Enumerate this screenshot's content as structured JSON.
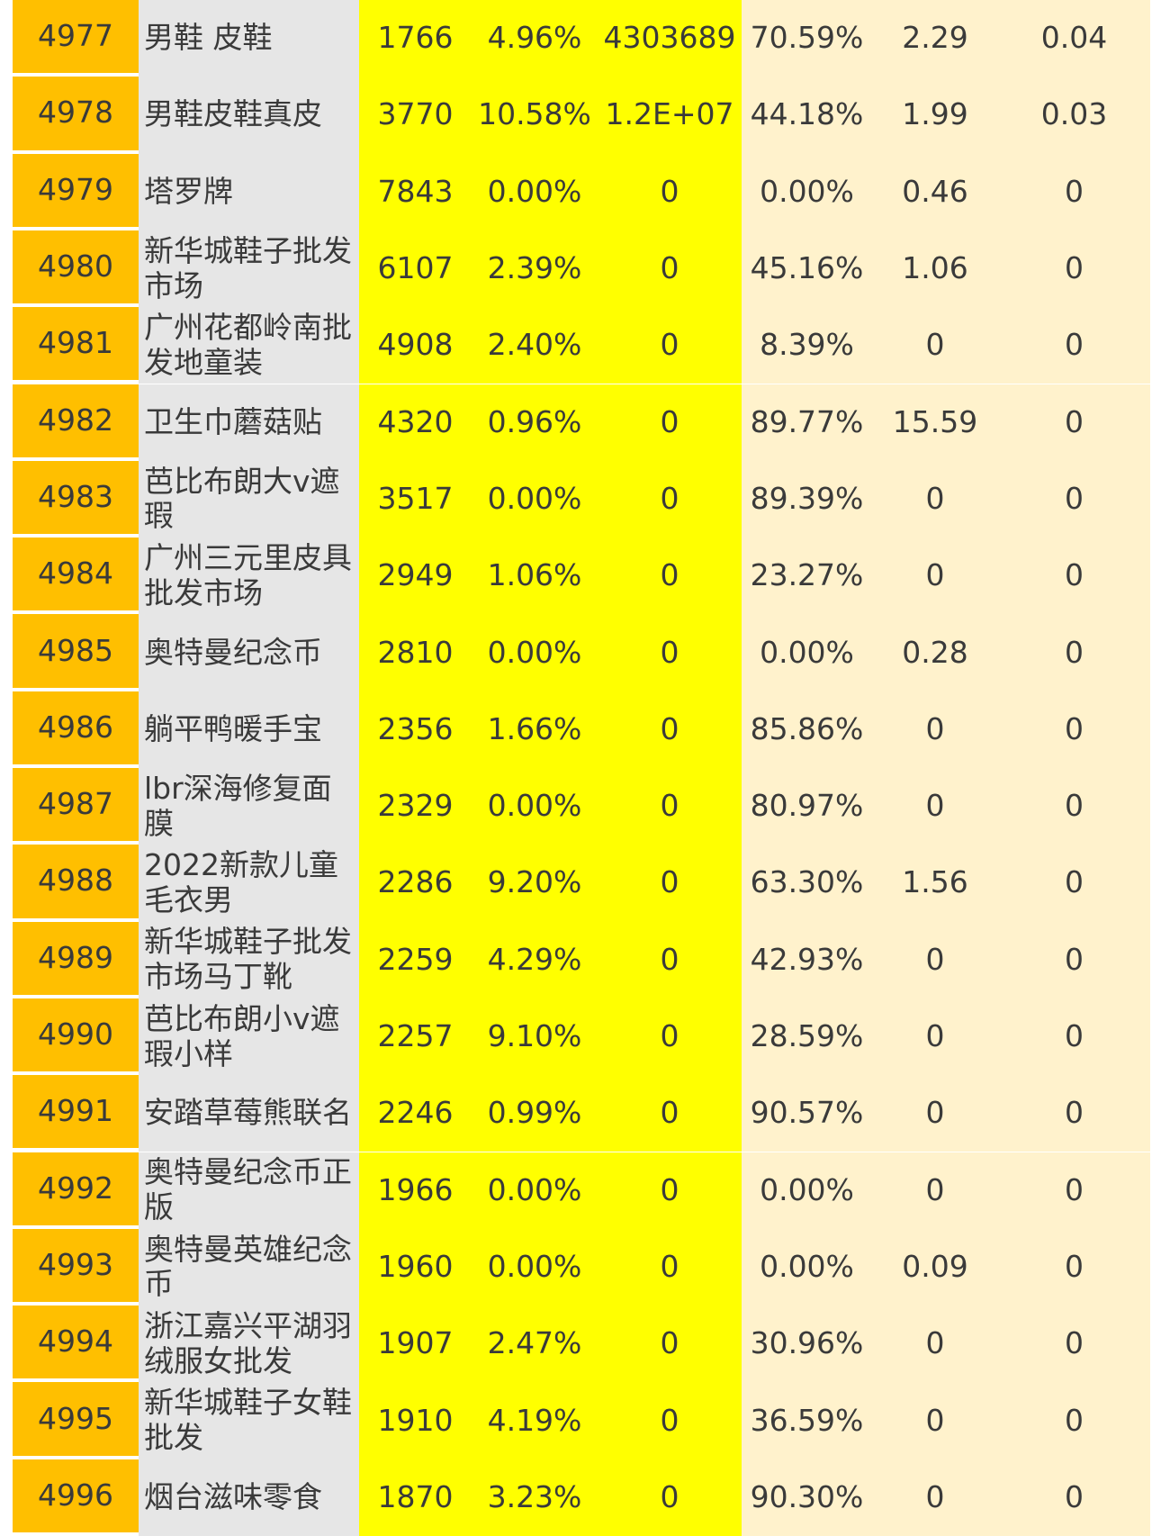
{
  "table": {
    "rows": [
      {
        "id": "4977",
        "name": "男鞋 皮鞋",
        "v1": "1766",
        "v2": "4.96%",
        "v3": "4303689",
        "v4": "70.59%",
        "v5": "2.29",
        "v6": "0.04"
      },
      {
        "id": "4978",
        "name": "男鞋皮鞋真皮",
        "v1": "3770",
        "v2": "10.58%",
        "v3": "1.2E+07",
        "v4": "44.18%",
        "v5": "1.99",
        "v6": "0.03"
      },
      {
        "id": "4979",
        "name": "塔罗牌",
        "v1": "7843",
        "v2": "0.00%",
        "v3": "0",
        "v4": "0.00%",
        "v5": "0.46",
        "v6": "0"
      },
      {
        "id": "4980",
        "name": "新华城鞋子批发市场",
        "v1": "6107",
        "v2": "2.39%",
        "v3": "0",
        "v4": "45.16%",
        "v5": "1.06",
        "v6": "0"
      },
      {
        "id": "4981",
        "name": "广州花都岭南批发地童装",
        "v1": "4908",
        "v2": "2.40%",
        "v3": "0",
        "v4": "8.39%",
        "v5": "0",
        "v6": "0"
      },
      {
        "id": "4982",
        "name": "卫生巾蘑菇贴",
        "v1": "4320",
        "v2": "0.96%",
        "v3": "0",
        "v4": "89.77%",
        "v5": "15.59",
        "v6": "0"
      },
      {
        "id": "4983",
        "name": "芭比布朗大v遮瑕",
        "v1": "3517",
        "v2": "0.00%",
        "v3": "0",
        "v4": "89.39%",
        "v5": "0",
        "v6": "0"
      },
      {
        "id": "4984",
        "name": "广州三元里皮具批发市场",
        "v1": "2949",
        "v2": "1.06%",
        "v3": "0",
        "v4": "23.27%",
        "v5": "0",
        "v6": "0"
      },
      {
        "id": "4985",
        "name": "奥特曼纪念币",
        "v1": "2810",
        "v2": "0.00%",
        "v3": "0",
        "v4": "0.00%",
        "v5": "0.28",
        "v6": "0"
      },
      {
        "id": "4986",
        "name": "躺平鸭暖手宝",
        "v1": "2356",
        "v2": "1.66%",
        "v3": "0",
        "v4": "85.86%",
        "v5": "0",
        "v6": "0"
      },
      {
        "id": "4987",
        "name": "lbr深海修复面膜",
        "v1": "2329",
        "v2": "0.00%",
        "v3": "0",
        "v4": "80.97%",
        "v5": "0",
        "v6": "0"
      },
      {
        "id": "4988",
        "name": "2022新款儿童毛衣男",
        "v1": "2286",
        "v2": "9.20%",
        "v3": "0",
        "v4": "63.30%",
        "v5": "1.56",
        "v6": "0"
      },
      {
        "id": "4989",
        "name": "新华城鞋子批发市场马丁靴",
        "v1": "2259",
        "v2": "4.29%",
        "v3": "0",
        "v4": "42.93%",
        "v5": "0",
        "v6": "0"
      },
      {
        "id": "4990",
        "name": "芭比布朗小v遮瑕小样",
        "v1": "2257",
        "v2": "9.10%",
        "v3": "0",
        "v4": "28.59%",
        "v5": "0",
        "v6": "0"
      },
      {
        "id": "4991",
        "name": "安踏草莓熊联名",
        "v1": "2246",
        "v2": "0.99%",
        "v3": "0",
        "v4": "90.57%",
        "v5": "0",
        "v6": "0"
      },
      {
        "id": "4992",
        "name": "奥特曼纪念币正版",
        "v1": "1966",
        "v2": "0.00%",
        "v3": "0",
        "v4": "0.00%",
        "v5": "0",
        "v6": "0"
      },
      {
        "id": "4993",
        "name": "奥特曼英雄纪念币",
        "v1": "1960",
        "v2": "0.00%",
        "v3": "0",
        "v4": "0.00%",
        "v5": "0.09",
        "v6": "0"
      },
      {
        "id": "4994",
        "name": "浙江嘉兴平湖羽绒服女批发",
        "v1": "1907",
        "v2": "2.47%",
        "v3": "0",
        "v4": "30.96%",
        "v5": "0",
        "v6": "0"
      },
      {
        "id": "4995",
        "name": "新华城鞋子女鞋批发",
        "v1": "1910",
        "v2": "4.19%",
        "v3": "0",
        "v4": "36.59%",
        "v5": "0",
        "v6": "0"
      },
      {
        "id": "4996",
        "name": "烟台滋味零食",
        "v1": "1870",
        "v2": "3.23%",
        "v3": "0",
        "v4": "90.30%",
        "v5": "0",
        "v6": "0"
      }
    ]
  }
}
